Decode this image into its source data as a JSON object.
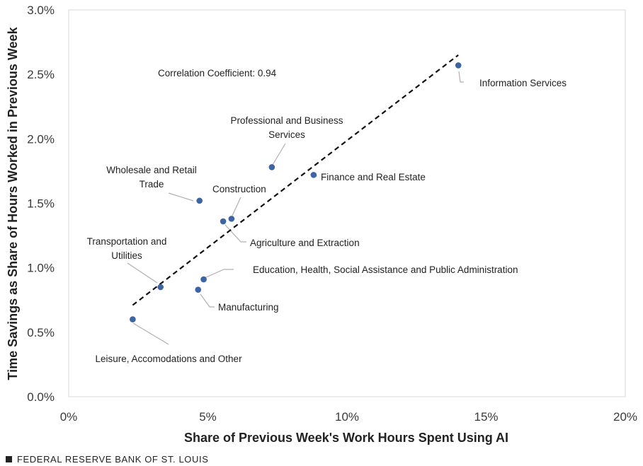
{
  "footer": {
    "source": "FEDERAL RESERVE BANK OF ST. LOUIS"
  },
  "colors": {
    "point": "#3d64a3",
    "trend": "#111111",
    "leader": "#b0b0b0",
    "plot_border": "#d9d9d9"
  },
  "chart_data": {
    "type": "scatter",
    "xlabel": "Share of Previous Week's Work Hours Spent Using AI",
    "ylabel": "Time Savings as Share of Hours Worked in Previous Week",
    "xlim": [
      0,
      20
    ],
    "ylim": [
      0,
      3.0
    ],
    "x_ticks": [
      0,
      5,
      10,
      15,
      20
    ],
    "x_tick_labels": [
      "0%",
      "5%",
      "10%",
      "15%",
      "20%"
    ],
    "y_ticks": [
      0,
      0.5,
      1.0,
      1.5,
      2.0,
      2.5,
      3.0
    ],
    "y_tick_labels": [
      "0.0%",
      "0.5%",
      "1.0%",
      "1.5%",
      "2.0%",
      "2.5%",
      "3.0%"
    ],
    "grid": false,
    "annotation": "Correlation Coefficient: 0.94",
    "trendline": {
      "style": "dashed",
      "x": [
        2.3,
        14.0
      ],
      "y": [
        0.71,
        2.65
      ]
    },
    "points": [
      {
        "label": "Information Services",
        "x": 14.0,
        "y": 2.57
      },
      {
        "label": "Professional and Business Services",
        "x": 7.3,
        "y": 1.78
      },
      {
        "label": "Finance and Real Estate",
        "x": 8.8,
        "y": 1.72
      },
      {
        "label": "Wholesale and Retail Trade",
        "x": 4.7,
        "y": 1.52
      },
      {
        "label": "Construction",
        "x": 5.85,
        "y": 1.38
      },
      {
        "label": "Agriculture and Extraction",
        "x": 5.55,
        "y": 1.36
      },
      {
        "label": "Transportation and Utilities",
        "x": 3.3,
        "y": 0.85
      },
      {
        "label": "Education, Health, Social Assistance and Public Administration",
        "x": 4.85,
        "y": 0.91
      },
      {
        "label": "Manufacturing",
        "x": 4.65,
        "y": 0.83
      },
      {
        "label": "Leisure, Accomodations and Other",
        "x": 2.3,
        "y": 0.6
      }
    ],
    "point_labels": [
      {
        "lines": [
          "Information Services"
        ]
      },
      {
        "lines": [
          "Professional and Business",
          "Services"
        ]
      },
      {
        "lines": [
          "Finance and Real Estate"
        ]
      },
      {
        "lines": [
          "Wholesale and Retail",
          "Trade"
        ]
      },
      {
        "lines": [
          "Construction"
        ]
      },
      {
        "lines": [
          "Agriculture and Extraction"
        ]
      },
      {
        "lines": [
          "Transportation and",
          "Utilities"
        ]
      },
      {
        "lines": [
          "Education, Health, Social Assistance and Public Administration"
        ]
      },
      {
        "lines": [
          "Manufacturing"
        ]
      },
      {
        "lines": [
          "Leisure, Accomodations and Other"
        ]
      }
    ]
  }
}
